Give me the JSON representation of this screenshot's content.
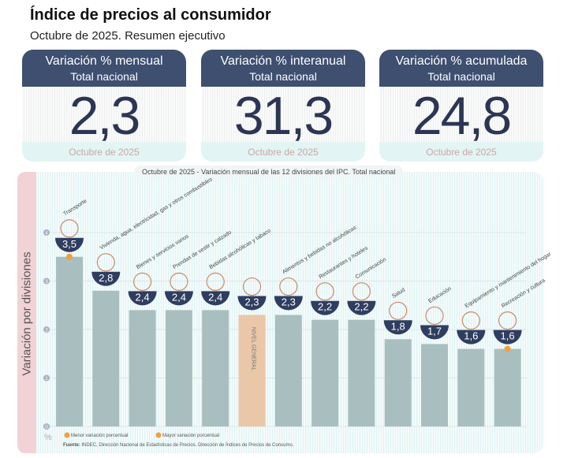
{
  "header": {
    "title": "Índice de precios al consumidor",
    "subtitle": "Octubre de 2025. Resumen ejecutivo"
  },
  "cards": [
    {
      "title": "Variación % mensual",
      "sub": "Total nacional",
      "value": "2,3",
      "period": "Octubre de 2025"
    },
    {
      "title": "Variación % interanual",
      "sub": "Total nacional",
      "value": "31,3",
      "period": "Octubre de 2025"
    },
    {
      "title": "Variación % acumulada",
      "sub": "Total nacional",
      "value": "24,8",
      "period": "Octubre de 2025"
    }
  ],
  "chart_data": {
    "type": "bar",
    "title": "Octubre de 2025 - Variación mensual de las 12 divisiones del IPC. Total nacional",
    "ylabel": "Variación por divisiones",
    "yunit": "%",
    "ylim": [
      0,
      4
    ],
    "yticks": [
      0,
      1,
      2,
      3,
      4
    ],
    "grid": true,
    "categories": [
      "Transporte",
      "Vivienda, agua, electricidad, gas y otros combustibles",
      "Bienes y servicios varios",
      "Prendas de vestir y calzado",
      "Bebidas alcohólicas y tabaco",
      "NIVEL GENERAL",
      "Alimentos y bebidas no alcohólicas",
      "Restaurantes y hoteles",
      "Comunicación",
      "Salud",
      "Educación",
      "Equipamiento y mantenimiento del hogar",
      "Recreación y cultura"
    ],
    "values": [
      3.5,
      2.8,
      2.4,
      2.4,
      2.4,
      2.3,
      2.3,
      2.2,
      2.2,
      1.8,
      1.7,
      1.6,
      1.6
    ],
    "value_labels": [
      "3,5",
      "2,8",
      "2,4",
      "2,4",
      "2,4",
      "2,3",
      "2,3",
      "2,2",
      "2,2",
      "1,8",
      "1,7",
      "1,6",
      "1,6"
    ],
    "colors": {
      "bar": "#a9bfbf",
      "general": "#e9c7a8",
      "badge": "#2f3d60",
      "marker": "#f0a040"
    },
    "legend": {
      "min": "Menor variación porcentual",
      "max": "Mayor variación porcentual",
      "position": "bottom-left"
    },
    "source_label": "Fuente:",
    "source": "INDEC, Dirección Nacional de Estadísticas de Precios. Dirección de Índices de Precios de Consumo."
  }
}
